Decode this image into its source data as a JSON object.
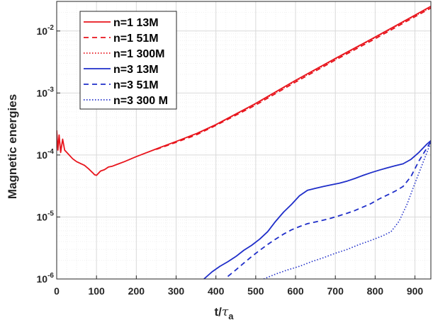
{
  "chart_data": {
    "type": "line",
    "xlabel_main": "t/",
    "xlabel_tau": "τ",
    "xlabel_sub": "a",
    "ylabel": "Magnetic energies",
    "xlim": [
      0,
      940
    ],
    "ylim": [
      1e-06,
      0.03
    ],
    "yscale": "log",
    "grid": true,
    "legend_position": "top-left",
    "x_ticks": [
      {
        "value": 0,
        "label": "0"
      },
      {
        "value": 100,
        "label": "100"
      },
      {
        "value": 200,
        "label": "200"
      },
      {
        "value": 300,
        "label": "300"
      },
      {
        "value": 400,
        "label": "400"
      },
      {
        "value": 500,
        "label": "500"
      },
      {
        "value": 600,
        "label": "600"
      },
      {
        "value": 700,
        "label": "700"
      },
      {
        "value": 800,
        "label": "800"
      },
      {
        "value": 900,
        "label": "900"
      }
    ],
    "y_ticks": [
      {
        "value": 1e-06,
        "base": "10",
        "exp": "-6"
      },
      {
        "value": 1e-05,
        "base": "10",
        "exp": "-5"
      },
      {
        "value": 0.0001,
        "base": "10",
        "exp": "-4"
      },
      {
        "value": 0.001,
        "base": "10",
        "exp": "-3"
      },
      {
        "value": 0.01,
        "base": "10",
        "exp": "-2"
      }
    ],
    "series": [
      {
        "name": "n=1 13M",
        "color": "#e8141c",
        "dash": "solid",
        "x": [
          0,
          3,
          6,
          10,
          15,
          20,
          30,
          40,
          50,
          60,
          70,
          80,
          90,
          95,
          100,
          110,
          120,
          130,
          140,
          150,
          170,
          200,
          250,
          300,
          350,
          400,
          500,
          600,
          700,
          800,
          900,
          940
        ],
        "y": [
          0.00025,
          0.00012,
          0.00021,
          0.00011,
          0.00018,
          0.00012,
          0.000102,
          8.7e-05,
          7.8e-05,
          7.3e-05,
          6.8e-05,
          6e-05,
          5.2e-05,
          4.8e-05,
          4.7e-05,
          5.5e-05,
          5.8e-05,
          6.4e-05,
          6.6e-05,
          7e-05,
          7.8e-05,
          9.4e-05,
          0.000125,
          0.000165,
          0.00022,
          0.00031,
          0.00068,
          0.0016,
          0.0036,
          0.008,
          0.018,
          0.025
        ]
      },
      {
        "name": "n=1 51M",
        "color": "#e8141c",
        "dash": "dashed",
        "x": [
          250,
          300,
          350,
          400,
          500,
          600,
          700,
          800,
          900,
          940
        ],
        "y": [
          0.000123,
          0.00016,
          0.00021,
          0.0003,
          0.00064,
          0.0015,
          0.0034,
          0.0075,
          0.017,
          0.0235
        ]
      },
      {
        "name": "n=1 300M",
        "color": "#e8141c",
        "dash": "dotted",
        "x": [
          350,
          400,
          500,
          600,
          700,
          800,
          900,
          940
        ],
        "y": [
          0.000215,
          0.000305,
          0.00066,
          0.00155,
          0.0035,
          0.0078,
          0.0175,
          0.024
        ]
      },
      {
        "name": "n=3 13M",
        "color": "#1f2ec9",
        "dash": "solid",
        "x": [
          370,
          390,
          410,
          430,
          450,
          470,
          490,
          510,
          530,
          550,
          570,
          590,
          610,
          630,
          650,
          670,
          690,
          710,
          730,
          750,
          770,
          790,
          810,
          830,
          850,
          870,
          890,
          910,
          930,
          940
        ],
        "y": [
          1e-06,
          1.3e-06,
          1.6e-06,
          1.9e-06,
          2.3e-06,
          2.9e-06,
          3.5e-06,
          4.4e-06,
          5.8e-06,
          8.5e-06,
          1.2e-05,
          1.6e-05,
          2.2e-05,
          2.7e-05,
          2.9e-05,
          3.1e-05,
          3.3e-05,
          3.5e-05,
          3.8e-05,
          4.2e-05,
          4.7e-05,
          5.2e-05,
          5.7e-05,
          6.2e-05,
          6.7e-05,
          7.2e-05,
          8.5e-05,
          0.00011,
          0.00015,
          0.00017
        ]
      },
      {
        "name": "n=3 51M",
        "color": "#1f2ec9",
        "dash": "dashed",
        "x": [
          430,
          450,
          470,
          490,
          510,
          530,
          550,
          570,
          590,
          610,
          630,
          650,
          670,
          690,
          710,
          730,
          750,
          770,
          790,
          810,
          830,
          850,
          870,
          890,
          910,
          930,
          940
        ],
        "y": [
          1.1e-06,
          1.4e-06,
          1.8e-06,
          2.3e-06,
          2.9e-06,
          3.6e-06,
          4.4e-06,
          5.3e-06,
          6.2e-06,
          7e-06,
          7.8e-06,
          8.3e-06,
          8.9e-06,
          9.6e-06,
          1.05e-05,
          1.15e-05,
          1.28e-05,
          1.45e-05,
          1.65e-05,
          1.95e-05,
          2.25e-05,
          2.6e-05,
          3.1e-05,
          4.5e-05,
          8e-05,
          0.00013,
          0.000165
        ]
      },
      {
        "name": "n=3 300 M",
        "color": "#1f2ec9",
        "dash": "dotted",
        "x": [
          520,
          550,
          580,
          610,
          640,
          670,
          700,
          730,
          760,
          790,
          820,
          840,
          860,
          880,
          900,
          920,
          940
        ],
        "y": [
          1e-06,
          1.2e-06,
          1.4e-06,
          1.6e-06,
          1.9e-06,
          2.2e-06,
          2.6e-06,
          3e-06,
          3.6e-06,
          4.2e-06,
          5e-06,
          5.8e-06,
          8.5e-06,
          1.6e-05,
          3.5e-05,
          7.5e-05,
          0.00016
        ]
      }
    ]
  }
}
